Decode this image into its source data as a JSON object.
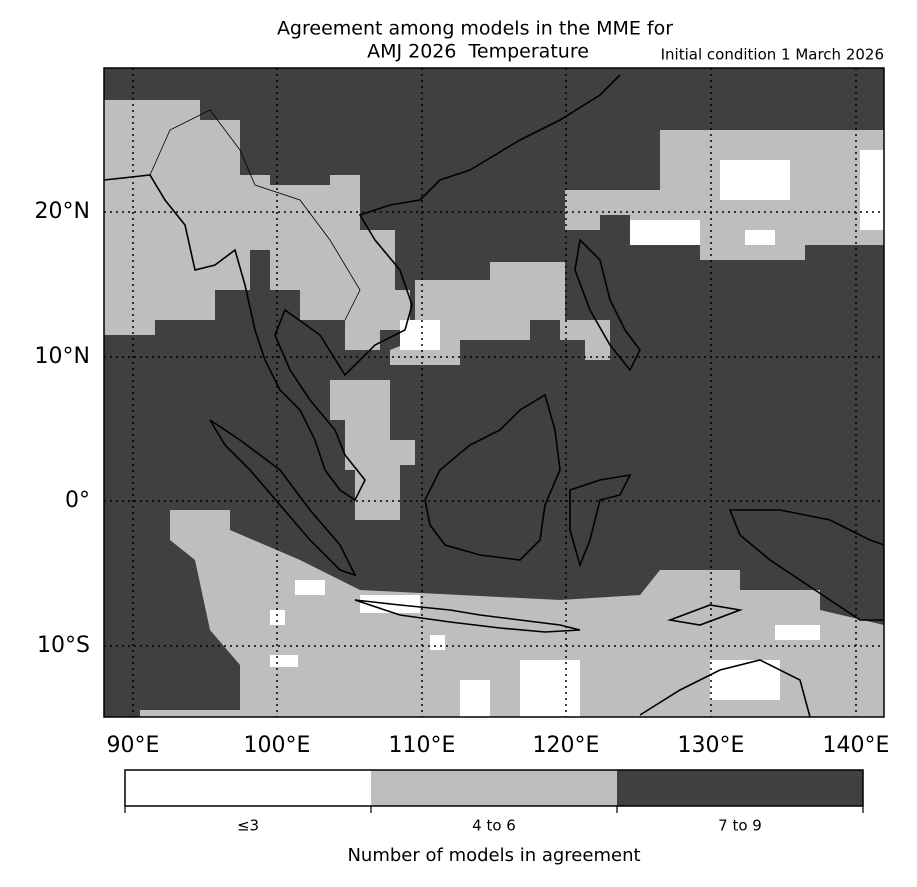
{
  "title": [
    "Agreement among models in the MME for",
    "AMJ 2026  Temperature"
  ],
  "initial_condition": "Initial condition 1 March 2026",
  "map": {
    "lat_labels": [
      "20°N",
      "10°N",
      "0°",
      "10°S"
    ],
    "lon_labels": [
      "90°E",
      "100°E",
      "110°E",
      "120°E",
      "130°E",
      "140°E"
    ]
  },
  "colorbar": {
    "labels": [
      "≤3",
      "4 to 6",
      "7 to 9"
    ],
    "title": "Number of models in agreement"
  }
}
